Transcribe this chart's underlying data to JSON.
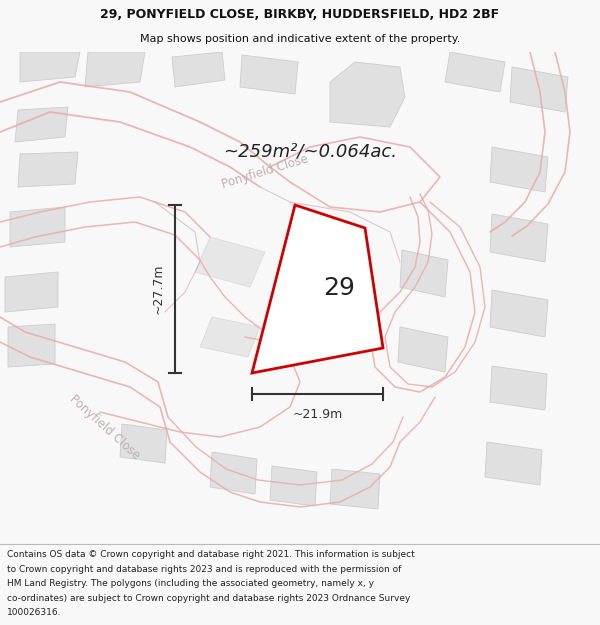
{
  "title_line1": "29, PONYFIELD CLOSE, BIRKBY, HUDDERSFIELD, HD2 2BF",
  "title_line2": "Map shows position and indicative extent of the property.",
  "area_label": "~259m²/~0.064ac.",
  "number_label": "29",
  "dim_width": "~21.9m",
  "dim_height": "~27.7m",
  "street_label1": "Ponyfield Close",
  "street_label2": "Ponyfield Close",
  "footer_lines": [
    "Contains OS data © Crown copyright and database right 2021. This information is subject",
    "to Crown copyright and database rights 2023 and is reproduced with the permission of",
    "HM Land Registry. The polygons (including the associated geometry, namely x, y",
    "co-ordinates) are subject to Crown copyright and database rights 2023 Ordnance Survey",
    "100026316."
  ],
  "bg_color": "#f8f8f8",
  "map_bg": "#fafafa",
  "plot_fill": "#ffffff",
  "plot_edge": "#cc0000",
  "road_color": "#e8aaaa",
  "road_fill": "#f0e8e8",
  "building_color": "#e0e0e0",
  "building_edge": "#cccccc",
  "parcel_edge": "#c8a8a8",
  "dim_line_color": "#333333",
  "title_color": "#111111",
  "street_text_color": "#c0b0b0",
  "footer_bg": "#ffffff",
  "footer_color": "#222222"
}
